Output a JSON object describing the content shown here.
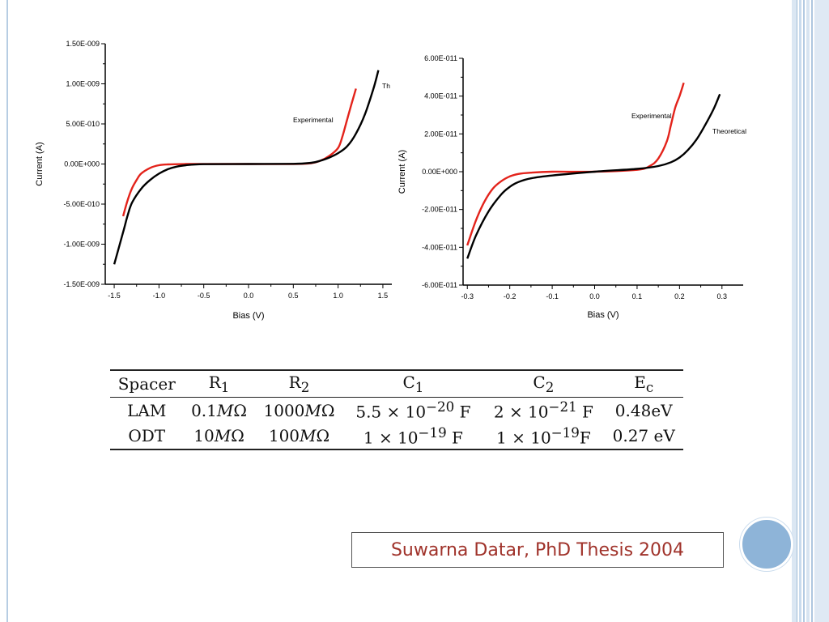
{
  "slide": {
    "caption": "Suwarna Datar, PhD Thesis 2004",
    "accent_color": "#8eb4d8",
    "border_color": "#b7cde3"
  },
  "chart_data": [
    {
      "type": "line",
      "xlabel": "Bias (V)",
      "ylabel": "Current (A)",
      "xlim": [
        -1.6,
        1.6
      ],
      "ylim": [
        -1.5e-09,
        1.5e-09
      ],
      "xticks": [
        "-1.5",
        "-1.0",
        "-0.5",
        "0.0",
        "0.5",
        "1.0",
        "1.5"
      ],
      "xtick_values": [
        -1.5,
        -1.0,
        -0.5,
        0.0,
        0.5,
        1.0,
        1.5
      ],
      "yticks": [
        "1.50E-009",
        "1.00E-009",
        "5.00E-010",
        "0.00E+000",
        "-5.00E-010",
        "-1.00E-009",
        "-1.50E-009"
      ],
      "ytick_values": [
        1.5e-09,
        1e-09,
        5e-10,
        0,
        -5e-10,
        -1e-09,
        -1.5e-09
      ],
      "series": [
        {
          "name": "Experimental",
          "color": "#e3231b",
          "x": [
            -1.4,
            -1.35,
            -1.3,
            -1.25,
            -1.2,
            -1.1,
            -1.0,
            -0.9,
            -0.7,
            -0.5,
            0.0,
            0.5,
            0.7,
            0.8,
            0.9,
            1.0,
            1.05,
            1.1,
            1.15,
            1.2
          ],
          "y": [
            -6.5e-10,
            -4.5e-10,
            -3e-10,
            -2e-10,
            -1.2e-10,
            -5e-11,
            -1.5e-11,
            -5e-12,
            0,
            0,
            0,
            0,
            1e-11,
            4e-11,
            1e-10,
            2e-10,
            3.5e-10,
            5.5e-10,
            7.5e-10,
            9.4e-10
          ]
        },
        {
          "name": "Th",
          "color": "#000000",
          "x": [
            -1.5,
            -1.4,
            -1.35,
            -1.3,
            -1.2,
            -1.1,
            -1.0,
            -0.9,
            -0.8,
            -0.7,
            -0.5,
            0.0,
            0.5,
            0.7,
            0.8,
            0.9,
            1.0,
            1.1,
            1.2,
            1.3,
            1.4,
            1.45
          ],
          "y": [
            -1.25e-09,
            -8.5e-10,
            -6.4e-10,
            -4.8e-10,
            -3.1e-10,
            -2e-10,
            -1.2e-10,
            -6.5e-11,
            -3.2e-11,
            -1.5e-11,
            -2e-12,
            0,
            2e-12,
            1.5e-11,
            4e-11,
            8e-11,
            1.35e-10,
            2.2e-10,
            3.8e-10,
            6.2e-10,
            9.6e-10,
            1.17e-09
          ]
        }
      ]
    },
    {
      "type": "line",
      "xlabel": "Bias (V)",
      "ylabel": "Current (A)",
      "xlim": [
        -0.31,
        0.35
      ],
      "ylim": [
        -6e-11,
        6e-11
      ],
      "xticks": [
        "-0.3",
        "-0.2",
        "-0.1",
        "0.0",
        "0.1",
        "0.2",
        "0.3"
      ],
      "xtick_values": [
        -0.3,
        -0.2,
        -0.1,
        0.0,
        0.1,
        0.2,
        0.3
      ],
      "yticks": [
        "6.00E-011",
        "4.00E-011",
        "2.00E-011",
        "0.00E+000",
        "-2.00E-011",
        "-4.00E-011",
        "-6.00E-011"
      ],
      "ytick_values": [
        6e-11,
        4e-11,
        2e-11,
        0,
        -2e-11,
        -4e-11,
        -6e-11
      ],
      "series": [
        {
          "name": "Experimental",
          "color": "#e3231b",
          "x": [
            -0.3,
            -0.28,
            -0.26,
            -0.24,
            -0.22,
            -0.2,
            -0.18,
            -0.15,
            -0.1,
            0.0,
            0.1,
            0.13,
            0.15,
            0.17,
            0.18,
            0.19,
            0.2,
            0.21
          ],
          "y": [
            -3.9e-11,
            -2.6e-11,
            -1.6e-11,
            -9e-12,
            -5e-12,
            -2.5e-12,
            -1.2e-12,
            -5e-13,
            0,
            0,
            1e-12,
            3e-12,
            7e-12,
            1.6e-11,
            2.5e-11,
            3.4e-11,
            4e-11,
            4.7e-11
          ]
        },
        {
          "name": "Theoretical",
          "color": "#000000",
          "x": [
            -0.3,
            -0.28,
            -0.25,
            -0.22,
            -0.2,
            -0.18,
            -0.15,
            -0.1,
            0.0,
            0.1,
            0.15,
            0.18,
            0.2,
            0.22,
            0.24,
            0.26,
            0.28,
            0.295
          ],
          "y": [
            -4.6e-11,
            -3.4e-11,
            -2.1e-11,
            -1.2e-11,
            -8e-12,
            -5.5e-12,
            -3.5e-12,
            -2e-12,
            0,
            1.5e-12,
            3e-12,
            5e-12,
            7.5e-12,
            1.15e-11,
            1.7e-11,
            2.45e-11,
            3.3e-11,
            4.1e-11
          ]
        }
      ]
    }
  ],
  "table": {
    "headers": [
      {
        "html": "Spacer"
      },
      {
        "html": "R<sub>1</sub>"
      },
      {
        "html": "R<sub>2</sub>"
      },
      {
        "html": "C<sub>1</sub>"
      },
      {
        "html": "C<sub>2</sub>"
      },
      {
        "html": "E<sub>c</sub>"
      }
    ],
    "rows": [
      [
        {
          "html": "LAM"
        },
        {
          "html": "0.1<i>M</i>Ω"
        },
        {
          "html": "1000<i>M</i>Ω"
        },
        {
          "html": "5.5 × 10<sup>−20</sup> F"
        },
        {
          "html": "2 × 10<sup>−21</sup> F"
        },
        {
          "html": "0.48eV"
        }
      ],
      [
        {
          "html": "ODT"
        },
        {
          "html": "10<i>M</i>Ω"
        },
        {
          "html": "100<i>M</i>Ω"
        },
        {
          "html": "1 × 10<sup>−19</sup> F"
        },
        {
          "html": "1 × 10<sup>−19</sup>F"
        },
        {
          "html": "0.27 eV"
        }
      ]
    ]
  }
}
